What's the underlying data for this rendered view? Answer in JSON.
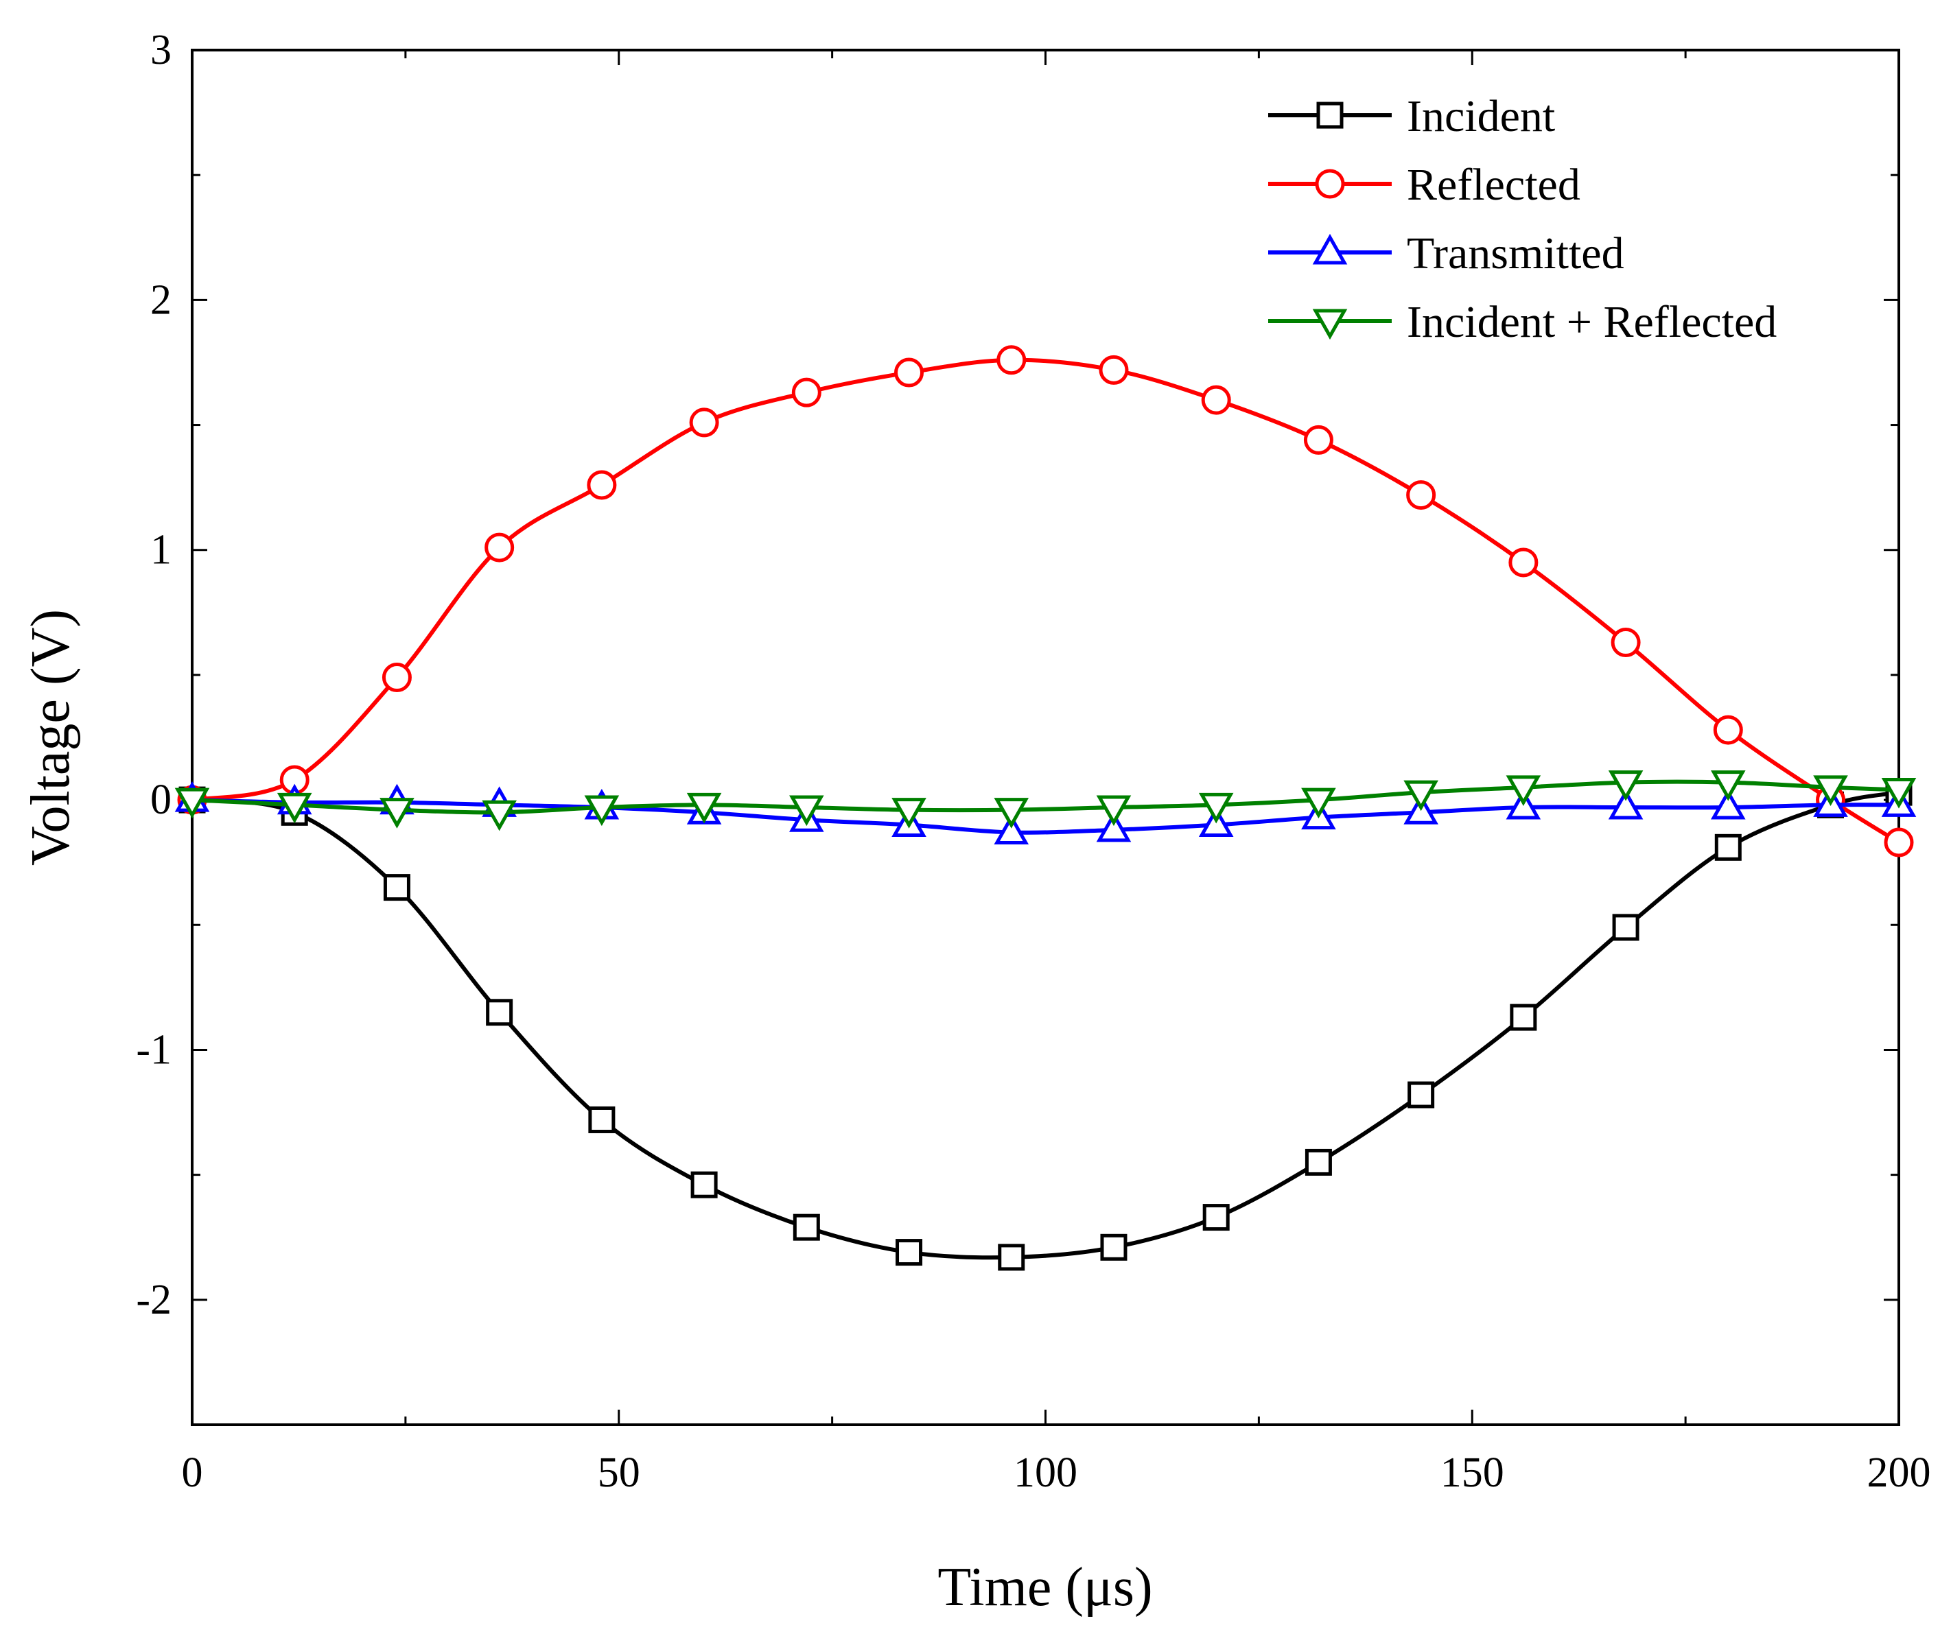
{
  "chart_data": {
    "type": "line",
    "title": "",
    "xlabel": "Time (μs)",
    "ylabel": "Voltage (V)",
    "xlim": [
      0,
      200
    ],
    "ylim": [
      -2.5,
      3
    ],
    "xticks": [
      0,
      50,
      100,
      150,
      200
    ],
    "xtick_labels": [
      "0",
      "50",
      "100",
      "150",
      "200"
    ],
    "yticks": [
      -2,
      -1,
      0,
      1,
      2,
      3
    ],
    "ytick_labels": [
      "-2",
      "-1",
      "0",
      "1",
      "2",
      "3"
    ],
    "grid": false,
    "legend_position": "top-right",
    "x": [
      0,
      12,
      24,
      36,
      48,
      60,
      72,
      84,
      96,
      108,
      120,
      132,
      144,
      156,
      168,
      180,
      192,
      200
    ],
    "series": [
      {
        "name": "Incident",
        "color": "#000000",
        "marker": "square",
        "values": [
          0.0,
          -0.05,
          -0.35,
          -0.85,
          -1.28,
          -1.54,
          -1.71,
          -1.81,
          -1.83,
          -1.79,
          -1.67,
          -1.45,
          -1.18,
          -0.87,
          -0.51,
          -0.19,
          -0.02,
          0.03
        ]
      },
      {
        "name": "Reflected",
        "color": "#ff0000",
        "marker": "circle",
        "values": [
          0.0,
          0.08,
          0.49,
          1.01,
          1.26,
          1.51,
          1.63,
          1.71,
          1.76,
          1.72,
          1.6,
          1.44,
          1.22,
          0.95,
          0.63,
          0.28,
          0.0,
          -0.17
        ]
      },
      {
        "name": "Transmitted",
        "color": "#0000ff",
        "marker": "triangle-up",
        "values": [
          0.0,
          -0.01,
          -0.01,
          -0.02,
          -0.03,
          -0.05,
          -0.08,
          -0.1,
          -0.13,
          -0.12,
          -0.1,
          -0.07,
          -0.05,
          -0.03,
          -0.03,
          -0.03,
          -0.02,
          -0.02
        ]
      },
      {
        "name": "Incident + Reflected",
        "color": "#008000",
        "marker": "triangle-down",
        "values": [
          0.0,
          -0.02,
          -0.04,
          -0.05,
          -0.03,
          -0.02,
          -0.03,
          -0.04,
          -0.04,
          -0.03,
          -0.02,
          0.0,
          0.03,
          0.05,
          0.07,
          0.07,
          0.05,
          0.04
        ]
      }
    ]
  }
}
